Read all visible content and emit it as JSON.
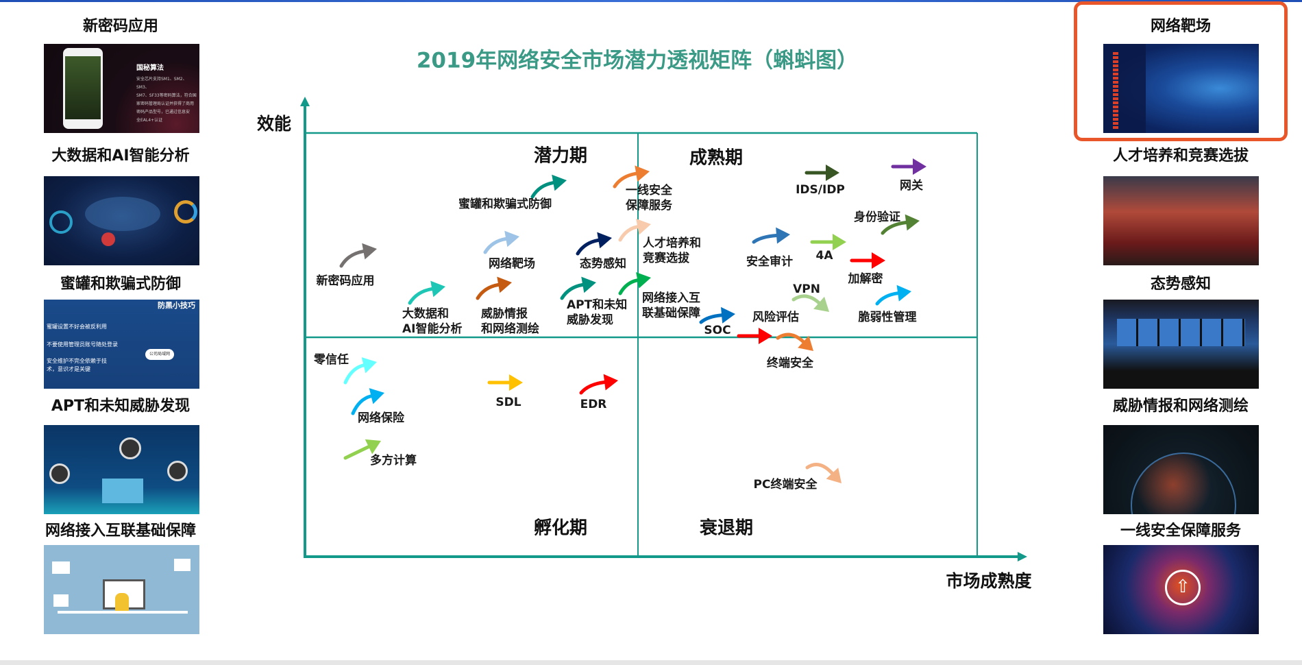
{
  "title": "2019年网络安全市场潜力透视矩阵（蝌蚪图）",
  "axes": {
    "y_label": "效能",
    "x_label": "市场成熟度",
    "color": "#13998a"
  },
  "quadrants": {
    "top_left": "潜力期",
    "top_right": "成熟期",
    "bottom_left": "孵化期",
    "bottom_right": "衰退期"
  },
  "items": [
    {
      "label": "新密码应用",
      "color": "#767171"
    },
    {
      "label": "大数据和\nAI智能分析",
      "color": "#1ec7b5"
    },
    {
      "label": "蜜罐和欺骗式防御",
      "color": "#009080"
    },
    {
      "label": "网络靶场",
      "color": "#9dc3e6"
    },
    {
      "label": "威胁情报\n和网络测绘",
      "color": "#c55a11"
    },
    {
      "label": "态势感知",
      "color": "#002060"
    },
    {
      "label": "APT和未知\n威胁发现",
      "color": "#00917f"
    },
    {
      "label": "一线安全\n保障服务",
      "color": "#ed7d31"
    },
    {
      "label": "人才培养和\n竞赛选拔",
      "color": "#f8cbad"
    },
    {
      "label": "网络接入互\n联基础保障",
      "color": "#00b050"
    },
    {
      "label": "IDS/IDP",
      "color": "#375623"
    },
    {
      "label": "网关",
      "color": "#7030a0"
    },
    {
      "label": "身份验证",
      "color": "#548235"
    },
    {
      "label": "安全审计",
      "color": "#2e75b6"
    },
    {
      "label": "4A",
      "color": "#92d050"
    },
    {
      "label": "加解密",
      "color": "#ff0000"
    },
    {
      "label": "VPN",
      "color": "#a9d18e"
    },
    {
      "label": "脆弱性管理",
      "color": "#00b0f0"
    },
    {
      "label": "SOC",
      "color": "#0070c0"
    },
    {
      "label": "风险评估",
      "color": "#ff0000"
    },
    {
      "label": "终端安全",
      "color": "#ed7d31"
    },
    {
      "label": "零信任",
      "color": "#66ffff"
    },
    {
      "label": "网络保险",
      "color": "#00b0f0"
    },
    {
      "label": "SDL",
      "color": "#ffc000"
    },
    {
      "label": "EDR",
      "color": "#ff0000"
    },
    {
      "label": "多方计算",
      "color": "#92d050"
    },
    {
      "label": "PC终端安全",
      "color": "#f4b183"
    }
  ],
  "left_panels": [
    {
      "title": "新密码应用",
      "image_text": {
        "heading": "国秘算法",
        "body": "安全芯片支持SM1、SM2、SM3、\nSM7、SF33等密码算法，符合国\n家密码管理局认证并获得了商用\n密码产品型号，已通过信息安\n全EAL4+认证"
      }
    },
    {
      "title": "大数据和AI智能分析"
    },
    {
      "title": "蜜罐和欺骗式防御",
      "image_text": {
        "heading": "防黑小技巧",
        "tips": [
          "蜜罐设置不好会被反利用",
          "不要使用管理员账号随处登录",
          "安全维护不完全依赖于技\n术，意识才是关键"
        ],
        "cloud": "公司局域网"
      }
    },
    {
      "title": "APT和未知威胁发现"
    },
    {
      "title": "网络接入互联基础保障"
    }
  ],
  "right_panels": [
    {
      "title": "网络靶场",
      "selected": true
    },
    {
      "title": "人才培养和竞赛选拔"
    },
    {
      "title": "态势感知"
    },
    {
      "title": "威胁情报和网络测绘"
    },
    {
      "title": "一线安全保障服务"
    }
  ],
  "highlight_color": "#e8562a"
}
